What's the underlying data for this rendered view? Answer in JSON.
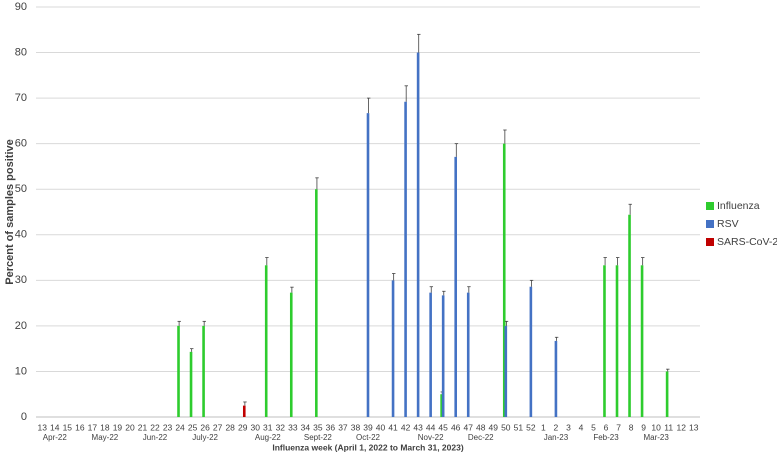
{
  "chart_data": {
    "type": "bar",
    "y_label": "Percent of samples positive",
    "x_label": "Influenza week (April 1, 2022 to March 31, 2023)",
    "categories": [
      "13",
      "14",
      "15",
      "16",
      "17",
      "18",
      "19",
      "20",
      "21",
      "22",
      "23",
      "24",
      "25",
      "26",
      "27",
      "28",
      "29",
      "30",
      "31",
      "32",
      "33",
      "34",
      "35",
      "36",
      "37",
      "38",
      "39",
      "40",
      "41",
      "42",
      "43",
      "44",
      "45",
      "46",
      "47",
      "48",
      "49",
      "50",
      "51",
      "52",
      "1",
      "2",
      "3",
      "4",
      "5",
      "6",
      "7",
      "8",
      "9",
      "10",
      "11",
      "12",
      "13"
    ],
    "month_labels": [
      null,
      "Apr-22",
      null,
      null,
      null,
      "May-22",
      null,
      null,
      null,
      "Jun-22",
      null,
      null,
      null,
      "July-22",
      null,
      null,
      null,
      null,
      "Aug-22",
      null,
      null,
      null,
      "Sept-22",
      null,
      null,
      null,
      "Oct-22",
      null,
      null,
      null,
      null,
      "Nov-22",
      null,
      null,
      null,
      "Dec-22",
      null,
      null,
      null,
      null,
      null,
      "Jan-23",
      null,
      null,
      null,
      "Feb-23",
      null,
      null,
      null,
      "Mar-23",
      null,
      null,
      null
    ],
    "series": [
      {
        "name": "Influenza",
        "color": "#2ecc2e",
        "values": [
          null,
          null,
          null,
          null,
          null,
          null,
          null,
          null,
          null,
          null,
          null,
          20,
          14.3,
          20,
          null,
          null,
          null,
          null,
          33.3,
          null,
          27.3,
          null,
          50,
          null,
          null,
          null,
          null,
          null,
          null,
          null,
          null,
          null,
          5,
          null,
          null,
          null,
          null,
          60,
          null,
          null,
          null,
          null,
          null,
          null,
          null,
          33.3,
          33.3,
          44.4,
          33.3,
          null,
          10,
          null,
          null
        ],
        "errors": [
          null,
          null,
          null,
          null,
          null,
          null,
          null,
          null,
          null,
          null,
          null,
          1,
          0.7,
          1,
          null,
          null,
          null,
          null,
          1.7,
          null,
          1.2,
          null,
          2.5,
          null,
          null,
          null,
          null,
          null,
          null,
          null,
          null,
          null,
          0.5,
          null,
          null,
          null,
          null,
          3,
          null,
          null,
          null,
          null,
          null,
          null,
          null,
          1.7,
          1.7,
          2.3,
          1.7,
          null,
          0.5,
          null,
          null
        ]
      },
      {
        "name": "RSV",
        "color": "#4472c4",
        "values": [
          null,
          null,
          null,
          null,
          null,
          null,
          null,
          null,
          null,
          null,
          null,
          null,
          null,
          null,
          null,
          null,
          null,
          null,
          null,
          null,
          null,
          null,
          null,
          null,
          null,
          null,
          66.7,
          null,
          30,
          69.2,
          80,
          27.3,
          26.7,
          57.1,
          27.3,
          null,
          null,
          20,
          null,
          28.6,
          null,
          16.7,
          null,
          null,
          null,
          null,
          null,
          null,
          null,
          null,
          null,
          null,
          null
        ],
        "errors": [
          null,
          null,
          null,
          null,
          null,
          null,
          null,
          null,
          null,
          null,
          null,
          null,
          null,
          null,
          null,
          null,
          null,
          null,
          null,
          null,
          null,
          null,
          null,
          null,
          null,
          null,
          3.3,
          null,
          1.5,
          3.5,
          4,
          1.3,
          0.9,
          2.9,
          1.3,
          null,
          null,
          1,
          null,
          1.4,
          null,
          0.8,
          null,
          null,
          null,
          null,
          null,
          null,
          null,
          null,
          null,
          null,
          null
        ]
      },
      {
        "name": "SARS-CoV-2",
        "color": "#c00000",
        "values": [
          null,
          null,
          null,
          null,
          null,
          null,
          null,
          null,
          null,
          null,
          null,
          null,
          null,
          null,
          null,
          null,
          2.5,
          null,
          null,
          null,
          null,
          null,
          null,
          null,
          null,
          null,
          null,
          null,
          null,
          null,
          null,
          null,
          null,
          null,
          null,
          null,
          null,
          null,
          null,
          null,
          null,
          null,
          null,
          null,
          null,
          null,
          null,
          null,
          null,
          null,
          null,
          null,
          null
        ],
        "errors": [
          null,
          null,
          null,
          null,
          null,
          null,
          null,
          null,
          null,
          null,
          null,
          null,
          null,
          null,
          null,
          null,
          0.8,
          null,
          null,
          null,
          null,
          null,
          null,
          null,
          null,
          null,
          null,
          null,
          null,
          null,
          null,
          null,
          null,
          null,
          null,
          null,
          null,
          null,
          null,
          null,
          null,
          null,
          null,
          null,
          null,
          null,
          null,
          null,
          null,
          null,
          null,
          null,
          null
        ]
      }
    ],
    "ylim": [
      0,
      90
    ],
    "yticks": [
      0,
      10,
      20,
      30,
      40,
      50,
      60,
      70,
      80,
      90
    ],
    "grid": true,
    "legend": "right"
  }
}
